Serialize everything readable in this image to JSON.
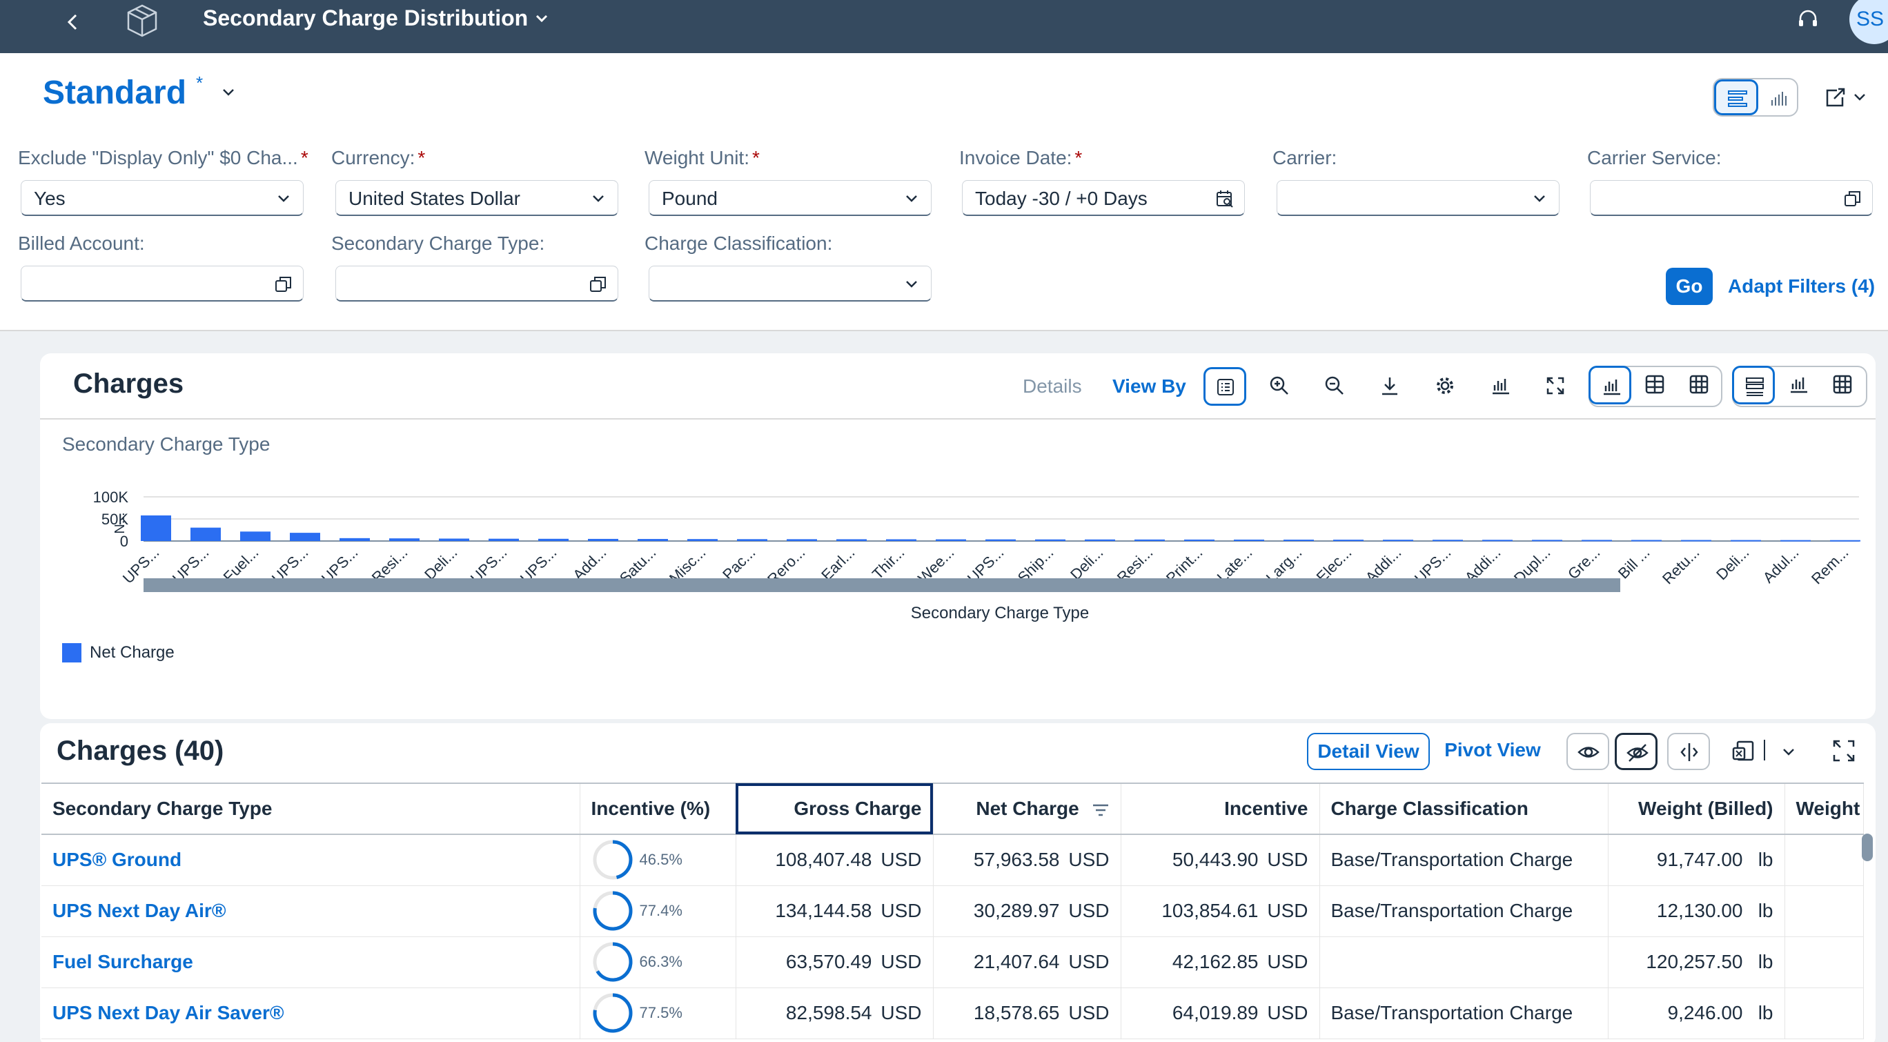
{
  "shell": {
    "title": "Secondary Charge Distribution",
    "avatar": "SS"
  },
  "header": {
    "variant": "Standard",
    "variant_modified": "*",
    "filters": [
      {
        "label": "Exclude \"Display Only\" $0 Cha...",
        "required": true,
        "value": "Yes",
        "icon": "chevron-down-icon"
      },
      {
        "label": "Currency:",
        "required": true,
        "value": "United States Dollar",
        "icon": "chevron-down-icon"
      },
      {
        "label": "Weight Unit:",
        "required": true,
        "value": "Pound",
        "icon": "chevron-down-icon"
      },
      {
        "label": "Invoice Date:",
        "required": true,
        "value": "Today -30 / +0 Days",
        "icon": "calendar-icon"
      },
      {
        "label": "Carrier:",
        "required": false,
        "value": "",
        "icon": "chevron-down-icon"
      },
      {
        "label": "Carrier Service:",
        "required": false,
        "value": "",
        "icon": "value-help-icon"
      },
      {
        "label": "Billed Account:",
        "required": false,
        "value": "",
        "icon": "value-help-icon"
      },
      {
        "label": "Secondary Charge Type:",
        "required": false,
        "value": "",
        "icon": "value-help-icon"
      },
      {
        "label": "Charge Classification:",
        "required": false,
        "value": "",
        "icon": "chevron-down-icon"
      }
    ],
    "required_mark": "*",
    "go": "Go",
    "adapt_filters": "Adapt Filters (4)"
  },
  "chart_card": {
    "title": "Charges",
    "details": "Details",
    "view_by": "View By",
    "subtitle": "Secondary Charge Type"
  },
  "chart_data": {
    "type": "bar",
    "xlabel": "Secondary Charge Type",
    "ylabel": "N...",
    "ylim": [
      0,
      100000
    ],
    "yticks": [
      "100K",
      "50K",
      "0"
    ],
    "legend_position": "bottom-left",
    "color": "#2b6ef2",
    "categories": [
      "UPS...",
      "UPS...",
      "Fuel...",
      "UPS...",
      "UPS...",
      "Resi...",
      "Deli...",
      "UPS...",
      "UPS...",
      "Add...",
      "Satu...",
      "Misc...",
      "Pac...",
      "Rero...",
      "Earl...",
      "Thir...",
      "Wee...",
      "UPS...",
      "Ship...",
      "Deli...",
      "Resi...",
      "Print...",
      "Late...",
      "Larg...",
      "Elec...",
      "Addi...",
      "UPS...",
      "Addi...",
      "Dupl...",
      "Gre...",
      "Bill ...",
      "Retu...",
      "Deli...",
      "Adul...",
      "Rem..."
    ],
    "series": [
      {
        "name": "Net Charge",
        "values": [
          57963.58,
          30289.97,
          21407.64,
          18578.65,
          6500,
          6000,
          5500,
          5200,
          5000,
          4800,
          4600,
          4400,
          4200,
          4100,
          4000,
          3900,
          3800,
          3700,
          3600,
          3500,
          3400,
          3300,
          3200,
          3100,
          3000,
          2900,
          2800,
          2700,
          2600,
          2500,
          2400,
          2300,
          2200,
          2100,
          2000
        ]
      }
    ]
  },
  "table_card": {
    "title": "Charges (40)",
    "detail_view": "Detail View",
    "pivot_view": "Pivot View",
    "columns": [
      "Secondary Charge Type",
      "Incentive (%)",
      "Gross Charge",
      "Net Charge",
      "Incentive",
      "Charge Classification",
      "Weight (Billed)",
      "Weight"
    ],
    "rows": [
      {
        "type": "UPS® Ground",
        "incentive_pct": "46.5%",
        "incentive_frac": 0.465,
        "gross": "108,407.48",
        "gross_cur": "USD",
        "net": "57,963.58",
        "net_cur": "USD",
        "incentive": "50,443.90",
        "incentive_cur": "USD",
        "classification": "Base/Transportation Charge",
        "weight": "91,747.00",
        "weight_unit": "lb"
      },
      {
        "type": "UPS Next Day Air®",
        "incentive_pct": "77.4%",
        "incentive_frac": 0.774,
        "gross": "134,144.58",
        "gross_cur": "USD",
        "net": "30,289.97",
        "net_cur": "USD",
        "incentive": "103,854.61",
        "incentive_cur": "USD",
        "classification": "Base/Transportation Charge",
        "weight": "12,130.00",
        "weight_unit": "lb"
      },
      {
        "type": "Fuel Surcharge",
        "incentive_pct": "66.3%",
        "incentive_frac": 0.663,
        "gross": "63,570.49",
        "gross_cur": "USD",
        "net": "21,407.64",
        "net_cur": "USD",
        "incentive": "42,162.85",
        "incentive_cur": "USD",
        "classification": "",
        "weight": "120,257.50",
        "weight_unit": "lb"
      },
      {
        "type": "UPS Next Day Air Saver®",
        "incentive_pct": "77.5%",
        "incentive_frac": 0.775,
        "gross": "82,598.54",
        "gross_cur": "USD",
        "net": "18,578.65",
        "net_cur": "USD",
        "incentive": "64,019.89",
        "incentive_cur": "USD",
        "classification": "Base/Transportation Charge",
        "weight": "9,246.00",
        "weight_unit": "lb"
      }
    ]
  }
}
